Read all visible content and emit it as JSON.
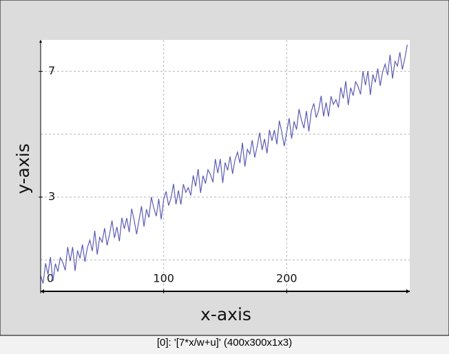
{
  "chart_data": {
    "type": "line",
    "x_label": "x-axis",
    "y_label": "y-axis",
    "caption": "[0]: '[7*x/w+u]' (400x300x1x3)",
    "xlim": [
      0,
      300
    ],
    "ylim": [
      0,
      8
    ],
    "xticks": [
      0,
      100,
      200
    ],
    "yticks": [
      3,
      7
    ],
    "xgrid": [
      100,
      200
    ],
    "ygrid": [
      1,
      3,
      5,
      7
    ],
    "grid": true,
    "series": [
      {
        "color": "#5a5ab4",
        "x": [
          0,
          2,
          4,
          6,
          8,
          10,
          12,
          14,
          16,
          18,
          20,
          22,
          24,
          26,
          28,
          30,
          32,
          34,
          36,
          38,
          40,
          42,
          44,
          46,
          48,
          50,
          52,
          54,
          56,
          58,
          60,
          62,
          64,
          66,
          68,
          70,
          72,
          74,
          76,
          78,
          80,
          82,
          84,
          86,
          88,
          90,
          92,
          94,
          96,
          98,
          100,
          102,
          104,
          106,
          108,
          110,
          112,
          114,
          116,
          118,
          120,
          122,
          124,
          126,
          128,
          130,
          132,
          134,
          136,
          138,
          140,
          142,
          144,
          146,
          148,
          150,
          152,
          154,
          156,
          158,
          160,
          162,
          164,
          166,
          168,
          170,
          172,
          174,
          176,
          178,
          180,
          182,
          184,
          186,
          188,
          190,
          192,
          194,
          196,
          198,
          200,
          202,
          204,
          206,
          208,
          210,
          212,
          214,
          216,
          218,
          220,
          222,
          224,
          226,
          228,
          230,
          232,
          234,
          236,
          238,
          240,
          242,
          244,
          246,
          248,
          250,
          252,
          254,
          256,
          258,
          260,
          262,
          264,
          266,
          268,
          270,
          272,
          274,
          276,
          278,
          280,
          282,
          284,
          286,
          288,
          290,
          292,
          294,
          296,
          298
        ],
        "values": [
          0.5,
          0.25,
          0.89,
          0.54,
          1.09,
          0.33,
          0.88,
          0.63,
          1.07,
          0.92,
          0.67,
          1.41,
          0.96,
          1.41,
          0.65,
          1.3,
          1.05,
          1.49,
          0.94,
          1.39,
          1.63,
          1.28,
          1.93,
          1.17,
          1.72,
          1.57,
          2.01,
          1.46,
          1.81,
          2.25,
          1.7,
          2.05,
          1.59,
          2.34,
          1.99,
          2.33,
          1.88,
          2.63,
          2.27,
          1.82,
          2.27,
          2.71,
          2.06,
          2.61,
          2.35,
          3.0,
          2.65,
          2.39,
          2.94,
          2.29,
          2.93,
          3.18,
          2.73,
          2.97,
          3.42,
          2.77,
          3.21,
          2.76,
          3.41,
          3.15,
          3.3,
          3.05,
          3.69,
          3.34,
          3.89,
          3.13,
          3.68,
          3.43,
          3.87,
          3.72,
          3.47,
          4.21,
          3.76,
          4.21,
          3.45,
          4.1,
          3.85,
          4.29,
          3.74,
          4.19,
          4.43,
          4.08,
          4.73,
          3.97,
          4.52,
          4.37,
          4.81,
          4.26,
          4.61,
          5.05,
          4.5,
          4.85,
          4.39,
          5.14,
          4.79,
          5.13,
          4.68,
          5.43,
          5.07,
          4.62,
          5.07,
          5.51,
          4.86,
          5.41,
          5.15,
          5.8,
          5.45,
          5.19,
          5.74,
          5.09,
          5.73,
          5.98,
          5.53,
          5.77,
          6.22,
          5.57,
          6.01,
          5.56,
          6.21,
          5.95,
          6.1,
          5.85,
          6.49,
          6.14,
          6.69,
          5.93,
          6.48,
          6.23,
          6.67,
          6.52,
          6.27,
          7.01,
          6.56,
          7.01,
          6.25,
          6.9,
          6.65,
          7.09,
          6.54,
          6.99,
          7.23,
          6.88,
          7.53,
          6.77,
          7.32,
          7.17,
          7.61,
          7.06,
          7.41,
          7.85
        ]
      }
    ]
  }
}
